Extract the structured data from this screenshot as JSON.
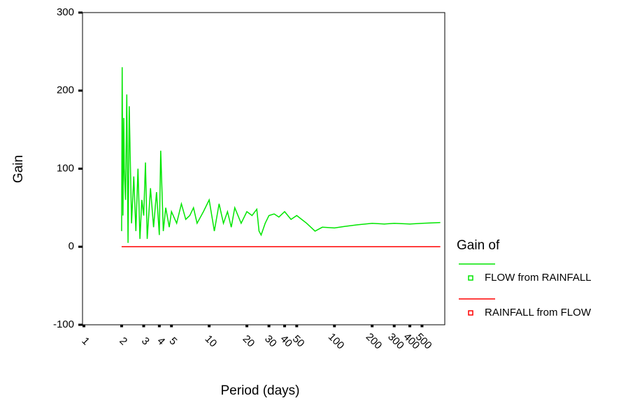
{
  "chart_data": {
    "type": "line",
    "x_label": "Period (days)",
    "y_label": "Gain",
    "legend_title": "Gain of",
    "legend": "right",
    "xscale": "log",
    "grid": false,
    "x": [
      2,
      2.02,
      2.05,
      2.08,
      2.1,
      2.15,
      2.2,
      2.25,
      2.3,
      2.4,
      2.5,
      2.6,
      2.7,
      2.8,
      2.9,
      3.0,
      3.1,
      3.2,
      3.4,
      3.6,
      3.8,
      4.0,
      4.1,
      4.3,
      4.5,
      4.8,
      5,
      5.5,
      6,
      6.5,
      7,
      7.5,
      8,
      9,
      10,
      11,
      12,
      13,
      14,
      15,
      16,
      18,
      20,
      22,
      24,
      25,
      26,
      28,
      30,
      33,
      36,
      40,
      45,
      50,
      60,
      70,
      80,
      100,
      120,
      150,
      200,
      250,
      300,
      400,
      500,
      700
    ],
    "series": [
      {
        "name": "FLOW from RAINFALL",
        "color": "#00e600",
        "values": [
          20,
          230,
          40,
          165,
          100,
          60,
          195,
          5,
          180,
          30,
          90,
          20,
          100,
          10,
          60,
          40,
          108,
          10,
          75,
          25,
          70,
          15,
          123,
          20,
          50,
          25,
          45,
          30,
          55,
          35,
          40,
          50,
          30,
          45,
          60,
          20,
          55,
          30,
          45,
          25,
          50,
          30,
          45,
          40,
          48,
          20,
          15,
          30,
          40,
          42,
          38,
          45,
          35,
          40,
          30,
          20,
          25,
          24,
          26,
          28,
          30,
          29,
          30,
          29,
          30,
          31
        ]
      },
      {
        "name": "RAINFALL from FLOW",
        "color": "#ff0000",
        "values": [
          0,
          0,
          0,
          0,
          0,
          0,
          0,
          0,
          0,
          0,
          0,
          0,
          0,
          0,
          0,
          0,
          0,
          0,
          0,
          0,
          0,
          0,
          0,
          0,
          0,
          0,
          0,
          0,
          0,
          0,
          0,
          0,
          0,
          0,
          0,
          0,
          0,
          0,
          0,
          0,
          0,
          0,
          0,
          0,
          0,
          0,
          0,
          0,
          0,
          0,
          0,
          0,
          0,
          0,
          0,
          0,
          0,
          0,
          0,
          0,
          0,
          0,
          0,
          0,
          0,
          0
        ]
      }
    ],
    "xlim": [
      1,
      760
    ],
    "xticks": [
      1,
      2,
      3,
      4,
      5,
      10,
      20,
      30,
      40,
      50,
      100,
      200,
      300,
      400,
      500
    ],
    "ylim": [
      -100,
      300
    ],
    "yticks": [
      -100,
      0,
      100,
      200,
      300
    ]
  }
}
